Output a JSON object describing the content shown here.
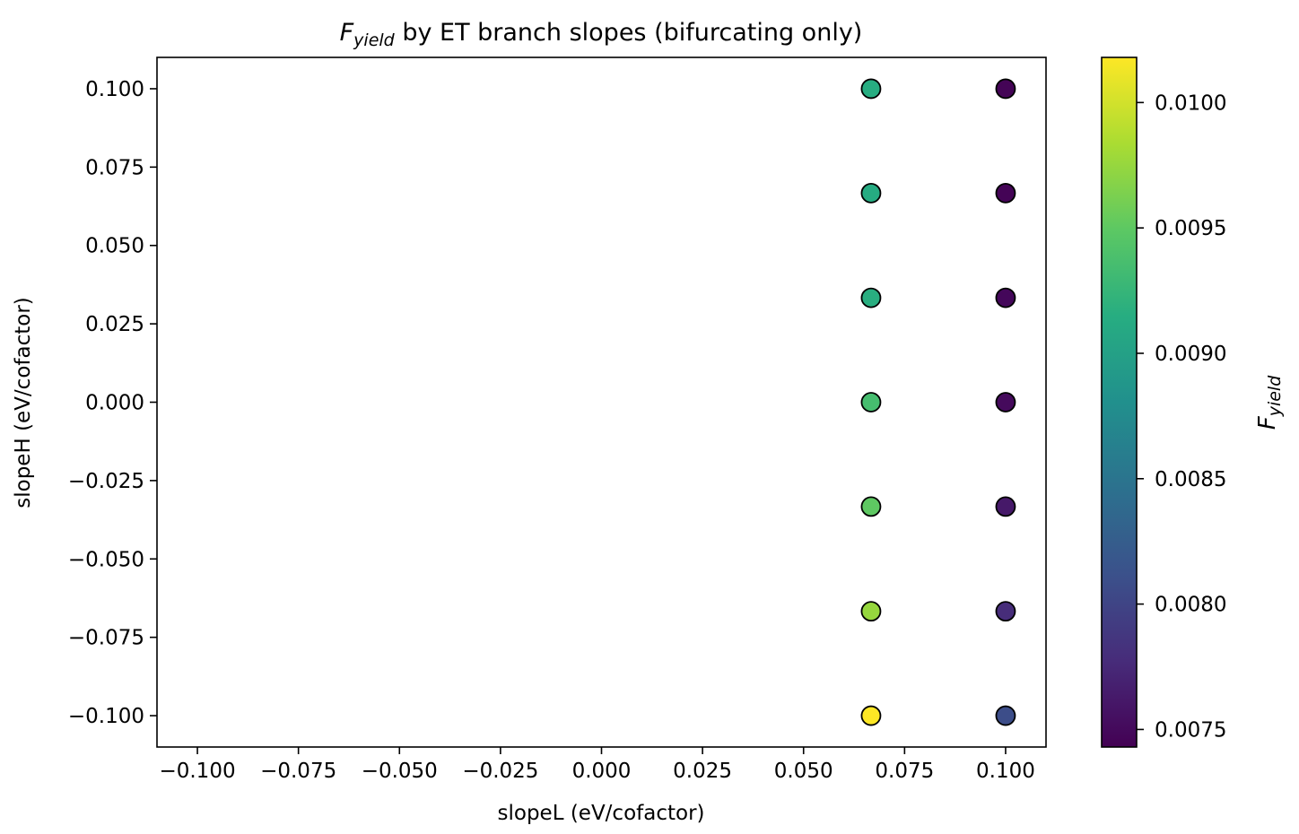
{
  "chart_data": {
    "type": "scatter",
    "title": {
      "main": "F",
      "sub": "yield",
      "rest": " by ET branch slopes (bifurcating only)"
    },
    "xlabel": "slopeL (eV/cofactor)",
    "ylabel": "slopeH (eV/cofactor)",
    "xlim": [
      -0.11,
      0.11
    ],
    "ylim": [
      -0.11,
      0.11
    ],
    "xticks": [
      "−0.100",
      "−0.075",
      "−0.050",
      "−0.025",
      "0.000",
      "0.025",
      "0.050",
      "0.075",
      "0.100"
    ],
    "yticks": [
      "−0.100",
      "−0.075",
      "−0.050",
      "−0.025",
      "0.000",
      "0.025",
      "0.050",
      "0.075",
      "0.100"
    ],
    "grid": false,
    "colormap": "viridis",
    "colorbar": {
      "label": {
        "main": "F",
        "sub": "yield"
      },
      "range": [
        0.00743,
        0.01018
      ],
      "ticks": [
        "0.0075",
        "0.0080",
        "0.0085",
        "0.0090",
        "0.0095",
        "0.0100"
      ]
    },
    "points": [
      {
        "x": 0.0667,
        "y": 0.1,
        "value": 0.00915
      },
      {
        "x": 0.0667,
        "y": 0.0667,
        "value": 0.00912
      },
      {
        "x": 0.0667,
        "y": 0.0333,
        "value": 0.00916
      },
      {
        "x": 0.0667,
        "y": 0.0,
        "value": 0.00935
      },
      {
        "x": 0.0667,
        "y": -0.0333,
        "value": 0.0095
      },
      {
        "x": 0.0667,
        "y": -0.0667,
        "value": 0.00975
      },
      {
        "x": 0.0667,
        "y": -0.1,
        "value": 0.01018
      },
      {
        "x": 0.1,
        "y": 0.1,
        "value": 0.00745
      },
      {
        "x": 0.1,
        "y": 0.0667,
        "value": 0.00745
      },
      {
        "x": 0.1,
        "y": 0.0333,
        "value": 0.00748
      },
      {
        "x": 0.1,
        "y": 0.0,
        "value": 0.0075
      },
      {
        "x": 0.1,
        "y": -0.0333,
        "value": 0.00762
      },
      {
        "x": 0.1,
        "y": -0.0667,
        "value": 0.00778
      },
      {
        "x": 0.1,
        "y": -0.1,
        "value": 0.00808
      }
    ]
  }
}
